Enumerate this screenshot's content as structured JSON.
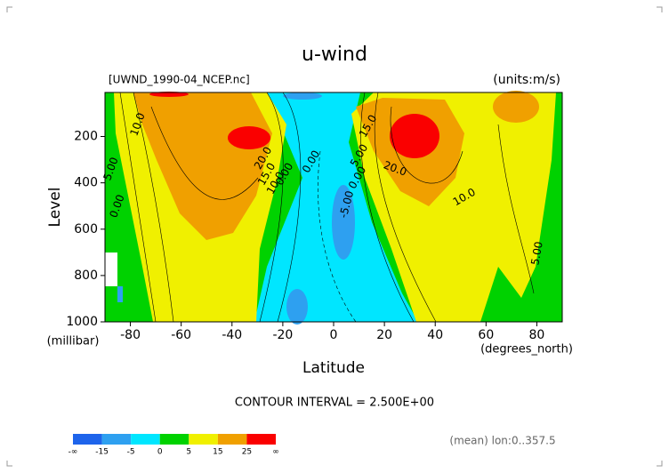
{
  "chart_data": {
    "type": "contour",
    "title": "u-wind",
    "subtitle": "[UWND_1990-04_NCEP.nc]",
    "units_label": "(units:m/s)",
    "x_label": "Latitude",
    "y_label": "Level",
    "x_unit": "(degrees_north)",
    "y_unit": "(millibar)",
    "xlim": [
      -90,
      90
    ],
    "ylim": [
      1000,
      10
    ],
    "xticks": [
      -80,
      -60,
      -40,
      -20,
      0,
      20,
      40,
      60,
      80
    ],
    "yticks": [
      200,
      400,
      600,
      800,
      1000
    ],
    "contour_interval": "CONTOUR INTERVAL = 2.500E+00",
    "footer": "(mean) lon:0..357.5",
    "contour_labels": [
      "10.0",
      "5.00",
      "0.00",
      "20.0",
      "15.0",
      "10.0",
      "0.00",
      "0.00",
      "-5.00",
      "5.00",
      "0.00",
      "15.0",
      "20.0",
      "10.0",
      "5.00"
    ],
    "colorbar_labels": [
      "-∞",
      "-15",
      "-5",
      "0",
      "5",
      "15",
      "25",
      "∞"
    ],
    "colors": [
      "#1e64eb",
      "#2ea0f0",
      "#00e6ff",
      "#00d200",
      "#f0f000",
      "#f0a000",
      "#fa0000"
    ]
  }
}
